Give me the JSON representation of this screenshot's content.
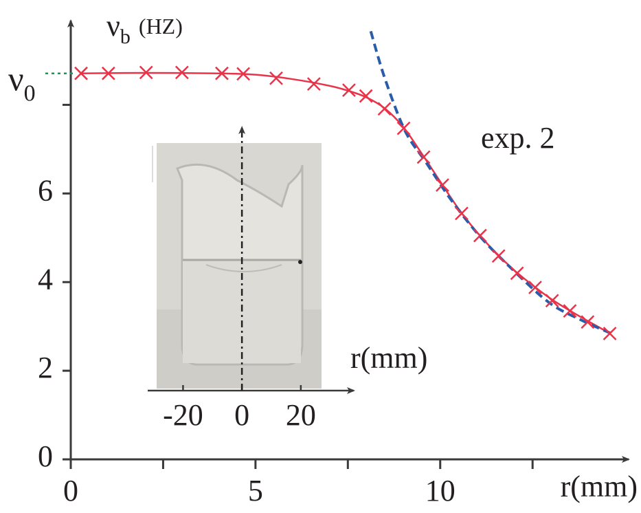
{
  "chart_data": {
    "type": "line",
    "xlabel": "r(mm)",
    "ylabel": {
      "symbol": "ν",
      "subscript": "b",
      "unit": "(HZ)"
    },
    "xlim": [
      0,
      15.1
    ],
    "ylim": [
      0,
      9.9
    ],
    "xticks": [
      0,
      5,
      10
    ],
    "xminor_ticks": [
      2.5,
      7.5,
      12.5
    ],
    "yticks": [
      0,
      2,
      4,
      6
    ],
    "yminor_ticks": [
      8
    ],
    "reference": {
      "symbol": "ν",
      "subscript": "0",
      "value": 8.71,
      "color": "#1a9850"
    },
    "annotation": {
      "text": "exp. 2",
      "color": "#e8344a"
    },
    "series": [
      {
        "style": "markers",
        "color": "#e8344a",
        "x": [
          0.28,
          1.02,
          2.04,
          3.01,
          4.09,
          4.67,
          5.56,
          6.58,
          7.53,
          7.99,
          8.49,
          9.01,
          9.55,
          10.06,
          10.58,
          11.08,
          11.58,
          12.08,
          12.57,
          13.03,
          13.51,
          13.99,
          14.59
        ],
        "values": [
          8.71,
          8.71,
          8.73,
          8.73,
          8.71,
          8.7,
          8.6,
          8.47,
          8.33,
          8.2,
          7.91,
          7.47,
          6.82,
          6.19,
          5.55,
          5.05,
          4.59,
          4.2,
          3.88,
          3.58,
          3.35,
          3.1,
          2.84
        ]
      },
      {
        "style": "solid",
        "color": "#e8344a",
        "x": [
          0.28,
          2,
          4,
          5,
          6,
          7,
          7.5,
          8,
          8.5,
          9,
          9.5,
          10,
          10.5,
          11,
          11.5,
          12,
          12.5,
          13,
          13.5,
          14,
          14.6
        ],
        "values": [
          8.71,
          8.72,
          8.71,
          8.68,
          8.58,
          8.43,
          8.32,
          8.17,
          7.92,
          7.5,
          6.9,
          6.27,
          5.65,
          5.12,
          4.67,
          4.27,
          3.93,
          3.62,
          3.36,
          3.12,
          2.84
        ]
      },
      {
        "style": "dashed",
        "color": "#2a5caa",
        "x": [
          8.12,
          8.5,
          9.05,
          9.61,
          10.3,
          11.1,
          12,
          12.96,
          13.8,
          14.63
        ],
        "values": [
          9.66,
          8.6,
          7.41,
          6.71,
          5.85,
          5.01,
          4.25,
          3.53,
          3.15,
          2.84
        ]
      }
    ],
    "inset": {
      "xlabel": "r(mm)",
      "xlim": [
        -32,
        38
      ],
      "xticks": [
        -20,
        0,
        20
      ]
    }
  }
}
